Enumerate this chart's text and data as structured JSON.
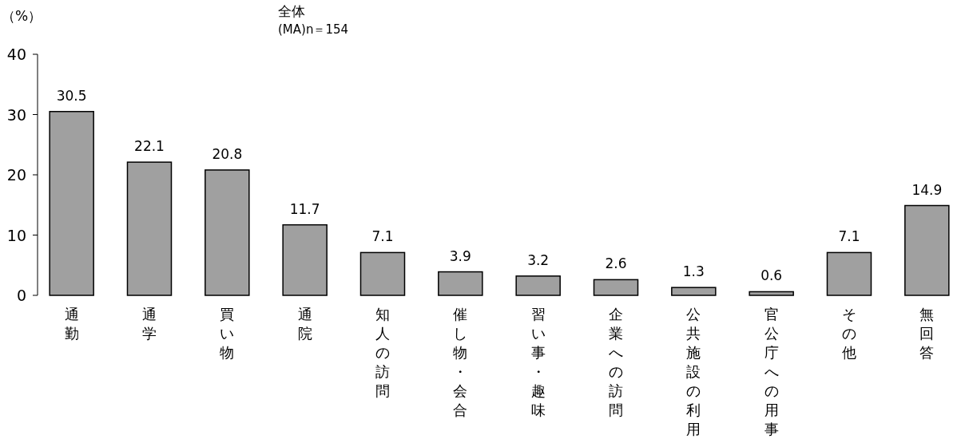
{
  "chart_data": {
    "type": "bar",
    "title": "全体",
    "subtitle": "(MA)n＝154",
    "ylabel": "（%）",
    "categories": [
      "通勤",
      "通学",
      "買い物",
      "通院",
      "知人の訪問",
      "催し物・会合",
      "習い事・趣味",
      "企業への訪問",
      "公共施設の利用",
      "官公庁への用事",
      "その他",
      "無回答"
    ],
    "values": [
      30.5,
      22.1,
      20.8,
      11.7,
      7.1,
      3.9,
      3.2,
      2.6,
      1.3,
      0.6,
      7.1,
      14.9
    ],
    "color": "#a0a0a0",
    "ylim": [
      0,
      40
    ],
    "yticks": [
      0,
      10,
      20,
      30,
      40
    ],
    "data_labels": true,
    "grid": false
  }
}
